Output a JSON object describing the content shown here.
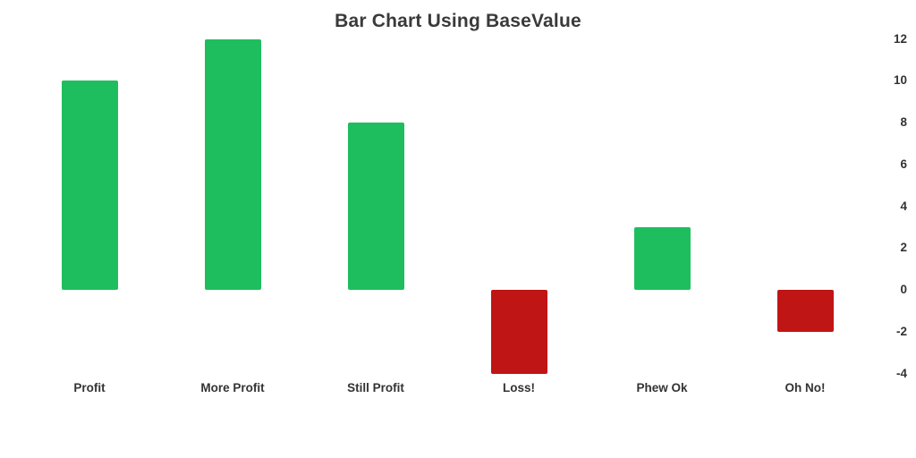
{
  "chart_data": {
    "type": "bar",
    "title": "Bar Chart Using BaseValue",
    "categories": [
      "Profit",
      "More Profit",
      "Still Profit",
      "Loss!",
      "Phew Ok",
      "Oh No!"
    ],
    "values": [
      10,
      12,
      8,
      -4,
      3,
      -2
    ],
    "base_value": 0,
    "y_ticks": [
      12,
      10,
      8,
      6,
      4,
      2,
      0,
      -2,
      -4
    ],
    "ylim": [
      -4,
      12
    ],
    "y_axis_position": "right",
    "grid": false,
    "legend": false,
    "xlabel": "",
    "ylabel": "",
    "positive_color": "#1EBE5E",
    "negative_color": "#C01515",
    "title_color": "#3a3a3a",
    "label_color": "#333333",
    "background_color": "#ffffff"
  }
}
